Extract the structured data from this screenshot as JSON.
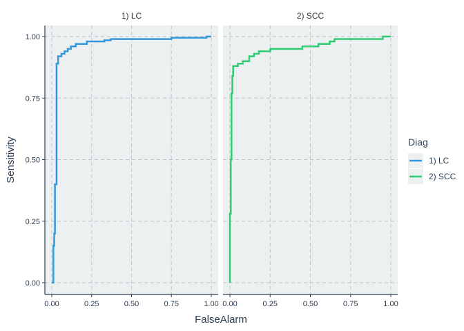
{
  "chart_data": {
    "type": "line",
    "xlabel": "FalseAlarm",
    "ylabel": "Sensitivity",
    "xlim": [
      0,
      1
    ],
    "ylim": [
      0,
      1
    ],
    "x_ticks": [
      "0.00",
      "0.25",
      "0.50",
      "0.75",
      "1.00"
    ],
    "y_ticks": [
      "0.00",
      "0.25",
      "0.50",
      "0.75",
      "1.00"
    ],
    "grid": true,
    "legend": {
      "title": "Diag",
      "position": "right",
      "entries": [
        "1) LC",
        "2) SCC"
      ]
    },
    "panels": [
      {
        "label": "1) LC",
        "series_name": "1) LC",
        "color": "#3498db",
        "points": [
          [
            0.0,
            0.0
          ],
          [
            0.01,
            0.0
          ],
          [
            0.01,
            0.15
          ],
          [
            0.015,
            0.15
          ],
          [
            0.015,
            0.2
          ],
          [
            0.02,
            0.2
          ],
          [
            0.02,
            0.4
          ],
          [
            0.03,
            0.4
          ],
          [
            0.03,
            0.89
          ],
          [
            0.04,
            0.89
          ],
          [
            0.04,
            0.92
          ],
          [
            0.06,
            0.92
          ],
          [
            0.06,
            0.93
          ],
          [
            0.08,
            0.93
          ],
          [
            0.08,
            0.94
          ],
          [
            0.1,
            0.94
          ],
          [
            0.1,
            0.95
          ],
          [
            0.12,
            0.95
          ],
          [
            0.12,
            0.96
          ],
          [
            0.15,
            0.96
          ],
          [
            0.15,
            0.97
          ],
          [
            0.22,
            0.97
          ],
          [
            0.22,
            0.98
          ],
          [
            0.33,
            0.98
          ],
          [
            0.33,
            0.985
          ],
          [
            0.37,
            0.985
          ],
          [
            0.37,
            0.99
          ],
          [
            0.75,
            0.99
          ],
          [
            0.75,
            0.995
          ],
          [
            0.97,
            0.995
          ],
          [
            0.97,
            1.0
          ],
          [
            1.0,
            1.0
          ]
        ]
      },
      {
        "label": "2) SCC",
        "series_name": "2) SCC",
        "color": "#2ecc71",
        "points": [
          [
            0.0,
            0.0
          ],
          [
            0.0,
            0.28
          ],
          [
            0.005,
            0.28
          ],
          [
            0.005,
            0.5
          ],
          [
            0.01,
            0.5
          ],
          [
            0.01,
            0.77
          ],
          [
            0.015,
            0.77
          ],
          [
            0.015,
            0.84
          ],
          [
            0.02,
            0.84
          ],
          [
            0.02,
            0.88
          ],
          [
            0.05,
            0.88
          ],
          [
            0.05,
            0.89
          ],
          [
            0.08,
            0.89
          ],
          [
            0.08,
            0.9
          ],
          [
            0.12,
            0.9
          ],
          [
            0.12,
            0.92
          ],
          [
            0.15,
            0.92
          ],
          [
            0.15,
            0.93
          ],
          [
            0.18,
            0.93
          ],
          [
            0.18,
            0.94
          ],
          [
            0.25,
            0.94
          ],
          [
            0.25,
            0.95
          ],
          [
            0.45,
            0.95
          ],
          [
            0.45,
            0.96
          ],
          [
            0.55,
            0.96
          ],
          [
            0.55,
            0.97
          ],
          [
            0.62,
            0.97
          ],
          [
            0.62,
            0.98
          ],
          [
            0.65,
            0.98
          ],
          [
            0.65,
            0.99
          ],
          [
            0.95,
            0.99
          ],
          [
            0.95,
            1.0
          ],
          [
            1.0,
            1.0
          ]
        ]
      }
    ]
  }
}
